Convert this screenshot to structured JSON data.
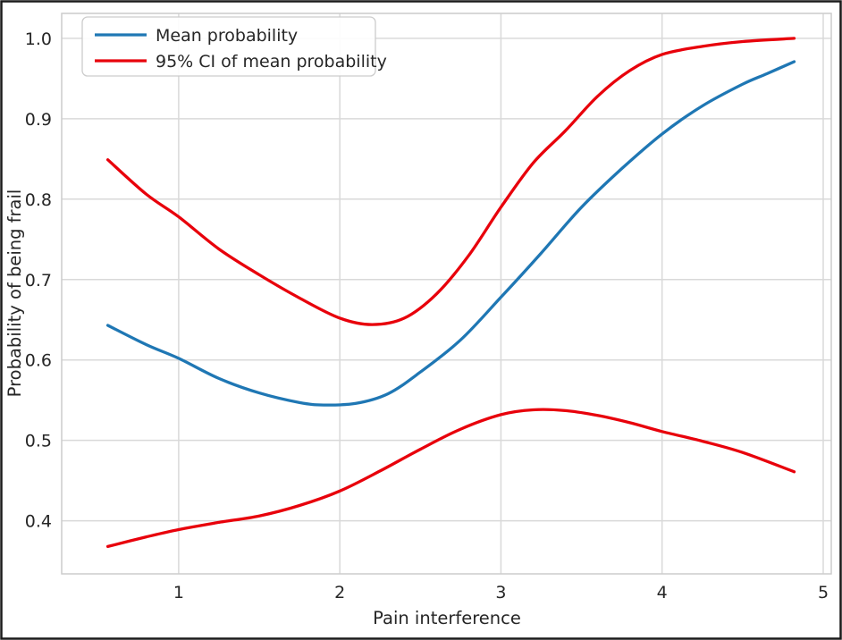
{
  "figure": {
    "background": "#ffffff",
    "border_color": "#1a1a1a"
  },
  "chart_data": {
    "type": "line",
    "title": "",
    "xlabel": "Pain interference",
    "ylabel": "Probability of being frail",
    "xlim": [
      0.274,
      5.05
    ],
    "ylim": [
      0.334,
      1.031
    ],
    "xticks": [
      1,
      2,
      3,
      4,
      5
    ],
    "xtick_labels": [
      "1",
      "2",
      "3",
      "4",
      "5"
    ],
    "yticks": [
      0.4,
      0.5,
      0.6,
      0.7,
      0.8,
      0.9,
      1.0
    ],
    "ytick_labels": [
      "0.4",
      "0.5",
      "0.6",
      "0.7",
      "0.8",
      "0.9",
      "1.0"
    ],
    "grid": true,
    "grid_color": "#d9d9d9",
    "spine_color": "#cccccc",
    "text_color": "#262626",
    "legend": {
      "position": "upper left",
      "items": [
        {
          "label": "Mean probability",
          "color": "#1f77b4"
        },
        {
          "label": "95% CI of mean probability",
          "color": "#e8000b"
        }
      ]
    },
    "series": [
      {
        "name": "Mean probability",
        "color": "#1f77b4",
        "points": [
          [
            0.56,
            0.643
          ],
          [
            0.8,
            0.619
          ],
          [
            1.0,
            0.602
          ],
          [
            1.25,
            0.577
          ],
          [
            1.5,
            0.559
          ],
          [
            1.75,
            0.547
          ],
          [
            1.9,
            0.544
          ],
          [
            2.1,
            0.546
          ],
          [
            2.3,
            0.558
          ],
          [
            2.5,
            0.585
          ],
          [
            2.75,
            0.625
          ],
          [
            3.0,
            0.678
          ],
          [
            3.25,
            0.733
          ],
          [
            3.5,
            0.79
          ],
          [
            3.75,
            0.838
          ],
          [
            4.0,
            0.881
          ],
          [
            4.25,
            0.916
          ],
          [
            4.5,
            0.943
          ],
          [
            4.65,
            0.956
          ],
          [
            4.82,
            0.971
          ]
        ]
      },
      {
        "name": "95% CI upper bound",
        "color": "#e8000b",
        "points": [
          [
            0.56,
            0.849
          ],
          [
            0.8,
            0.806
          ],
          [
            1.0,
            0.778
          ],
          [
            1.25,
            0.738
          ],
          [
            1.5,
            0.706
          ],
          [
            1.75,
            0.677
          ],
          [
            2.0,
            0.652
          ],
          [
            2.2,
            0.644
          ],
          [
            2.4,
            0.652
          ],
          [
            2.6,
            0.682
          ],
          [
            2.8,
            0.73
          ],
          [
            3.0,
            0.79
          ],
          [
            3.2,
            0.845
          ],
          [
            3.4,
            0.885
          ],
          [
            3.6,
            0.928
          ],
          [
            3.8,
            0.96
          ],
          [
            4.0,
            0.98
          ],
          [
            4.25,
            0.99
          ],
          [
            4.5,
            0.996
          ],
          [
            4.82,
            1.0
          ]
        ]
      },
      {
        "name": "95% CI lower bound",
        "color": "#e8000b",
        "points": [
          [
            0.56,
            0.368
          ],
          [
            0.8,
            0.38
          ],
          [
            1.0,
            0.389
          ],
          [
            1.25,
            0.398
          ],
          [
            1.5,
            0.406
          ],
          [
            1.75,
            0.419
          ],
          [
            2.0,
            0.437
          ],
          [
            2.25,
            0.462
          ],
          [
            2.5,
            0.489
          ],
          [
            2.75,
            0.514
          ],
          [
            3.0,
            0.532
          ],
          [
            3.2,
            0.538
          ],
          [
            3.4,
            0.537
          ],
          [
            3.6,
            0.531
          ],
          [
            3.8,
            0.522
          ],
          [
            4.0,
            0.511
          ],
          [
            4.25,
            0.499
          ],
          [
            4.5,
            0.485
          ],
          [
            4.82,
            0.461
          ]
        ]
      }
    ]
  }
}
